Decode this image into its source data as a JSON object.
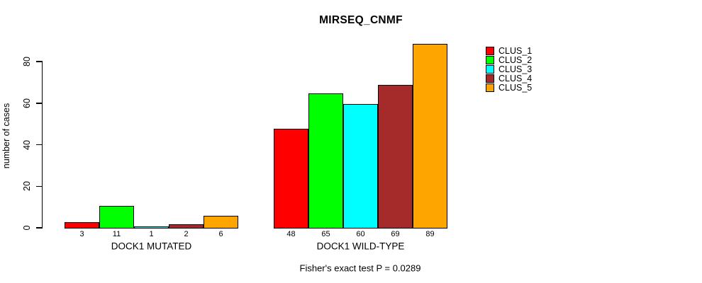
{
  "chart_data": {
    "type": "bar",
    "title": "MIRSEQ_CNMF",
    "ylabel": "number of cases",
    "xlabel": "",
    "ylim": [
      0,
      89
    ],
    "yticks": [
      0,
      20,
      40,
      60,
      80
    ],
    "grid": false,
    "legend_position": "outside-top-right",
    "bar_value_labels_shown": true,
    "categories": [
      "DOCK1 MUTATED",
      "DOCK1 WILD-TYPE"
    ],
    "series": [
      {
        "name": "CLUS_1",
        "color": "#FF0000",
        "values": [
          3,
          48
        ]
      },
      {
        "name": "CLUS_2",
        "color": "#00FF00",
        "values": [
          11,
          65
        ]
      },
      {
        "name": "CLUS_3",
        "color": "#00FFFF",
        "values": [
          1,
          60
        ]
      },
      {
        "name": "CLUS_4",
        "color": "#A52A2A",
        "values": [
          2,
          69
        ]
      },
      {
        "name": "CLUS_5",
        "color": "#FFA500",
        "values": [
          6,
          89
        ]
      }
    ],
    "annotation": "Fisher's exact test P = 0.0289"
  }
}
